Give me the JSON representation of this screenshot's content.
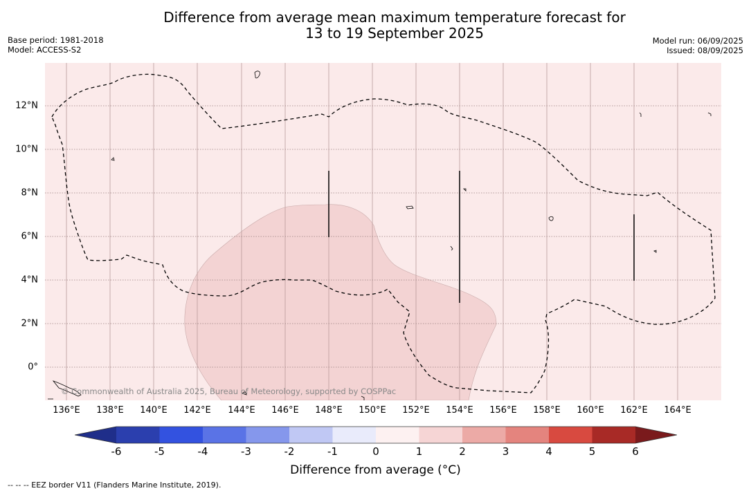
{
  "header": {
    "title_line1": "Difference from average mean maximum temperature forecast for",
    "title_line2": "13 to 19 September 2025",
    "base_period": "Base period: 1981-2018",
    "model": "Model: ACCESS-S2",
    "model_run": "Model run: 06/09/2025",
    "issued": "Issued: 08/09/2025"
  },
  "map": {
    "background_color": "#fbeaea",
    "anomaly_patch_color": "#f3d3d3",
    "longitude_labels": [
      "136°E",
      "138°E",
      "140°E",
      "142°E",
      "144°E",
      "146°E",
      "148°E",
      "150°E",
      "152°E",
      "154°E",
      "156°E",
      "158°E",
      "160°E",
      "162°E",
      "164°E"
    ],
    "latitude_labels": [
      "12°N",
      "10°N",
      "8°N",
      "6°N",
      "4°N",
      "2°N",
      "0°"
    ],
    "copyright": "© Commonwealth of Australia 2025, Bureau of Meteorology, supported by COSPPac"
  },
  "colorbar": {
    "ticks": [
      "-6",
      "-5",
      "-4",
      "-3",
      "-2",
      "-1",
      "0",
      "1",
      "2",
      "3",
      "4",
      "5",
      "6"
    ],
    "colors": [
      "#1f2e8a",
      "#2b3fae",
      "#3352e0",
      "#5a73e6",
      "#8597ec",
      "#c0c8f4",
      "#e9ebfb",
      "#fdf1f1",
      "#f6d5d5",
      "#ecaaa6",
      "#e4847e",
      "#d84a40",
      "#a82a26",
      "#7a1a1c"
    ],
    "label": "Difference from average (°C)"
  },
  "footnote": "--  --  -- EEZ border V11 (Flanders Marine Institute, 2019)."
}
